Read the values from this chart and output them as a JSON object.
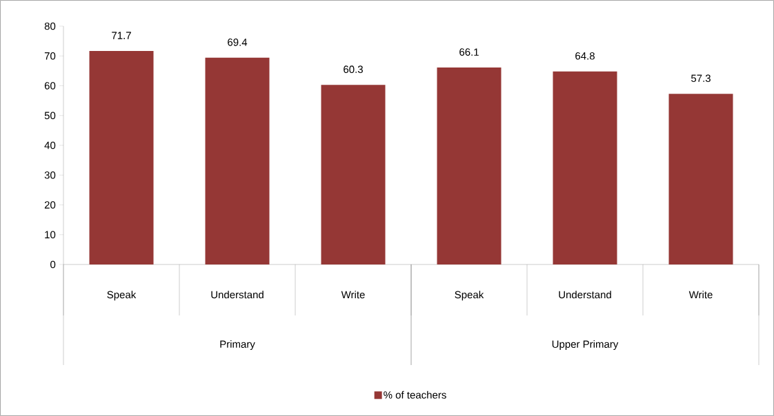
{
  "chart_data": {
    "type": "bar",
    "categories": [
      "Speak",
      "Understand",
      "Write",
      "Speak",
      "Understand",
      "Write"
    ],
    "series": [
      {
        "name": "% of teachers",
        "color": "#953735",
        "values": [
          71.7,
          69.4,
          60.3,
          66.1,
          64.8,
          57.3
        ]
      }
    ],
    "ylim": [
      0,
      80
    ],
    "yticks": [
      0,
      10,
      20,
      30,
      40,
      50,
      60,
      70,
      80
    ],
    "data_labels": true,
    "legend": "bottom",
    "grid": false,
    "annotations": [
      "Primary",
      "Upper Primary"
    ]
  }
}
